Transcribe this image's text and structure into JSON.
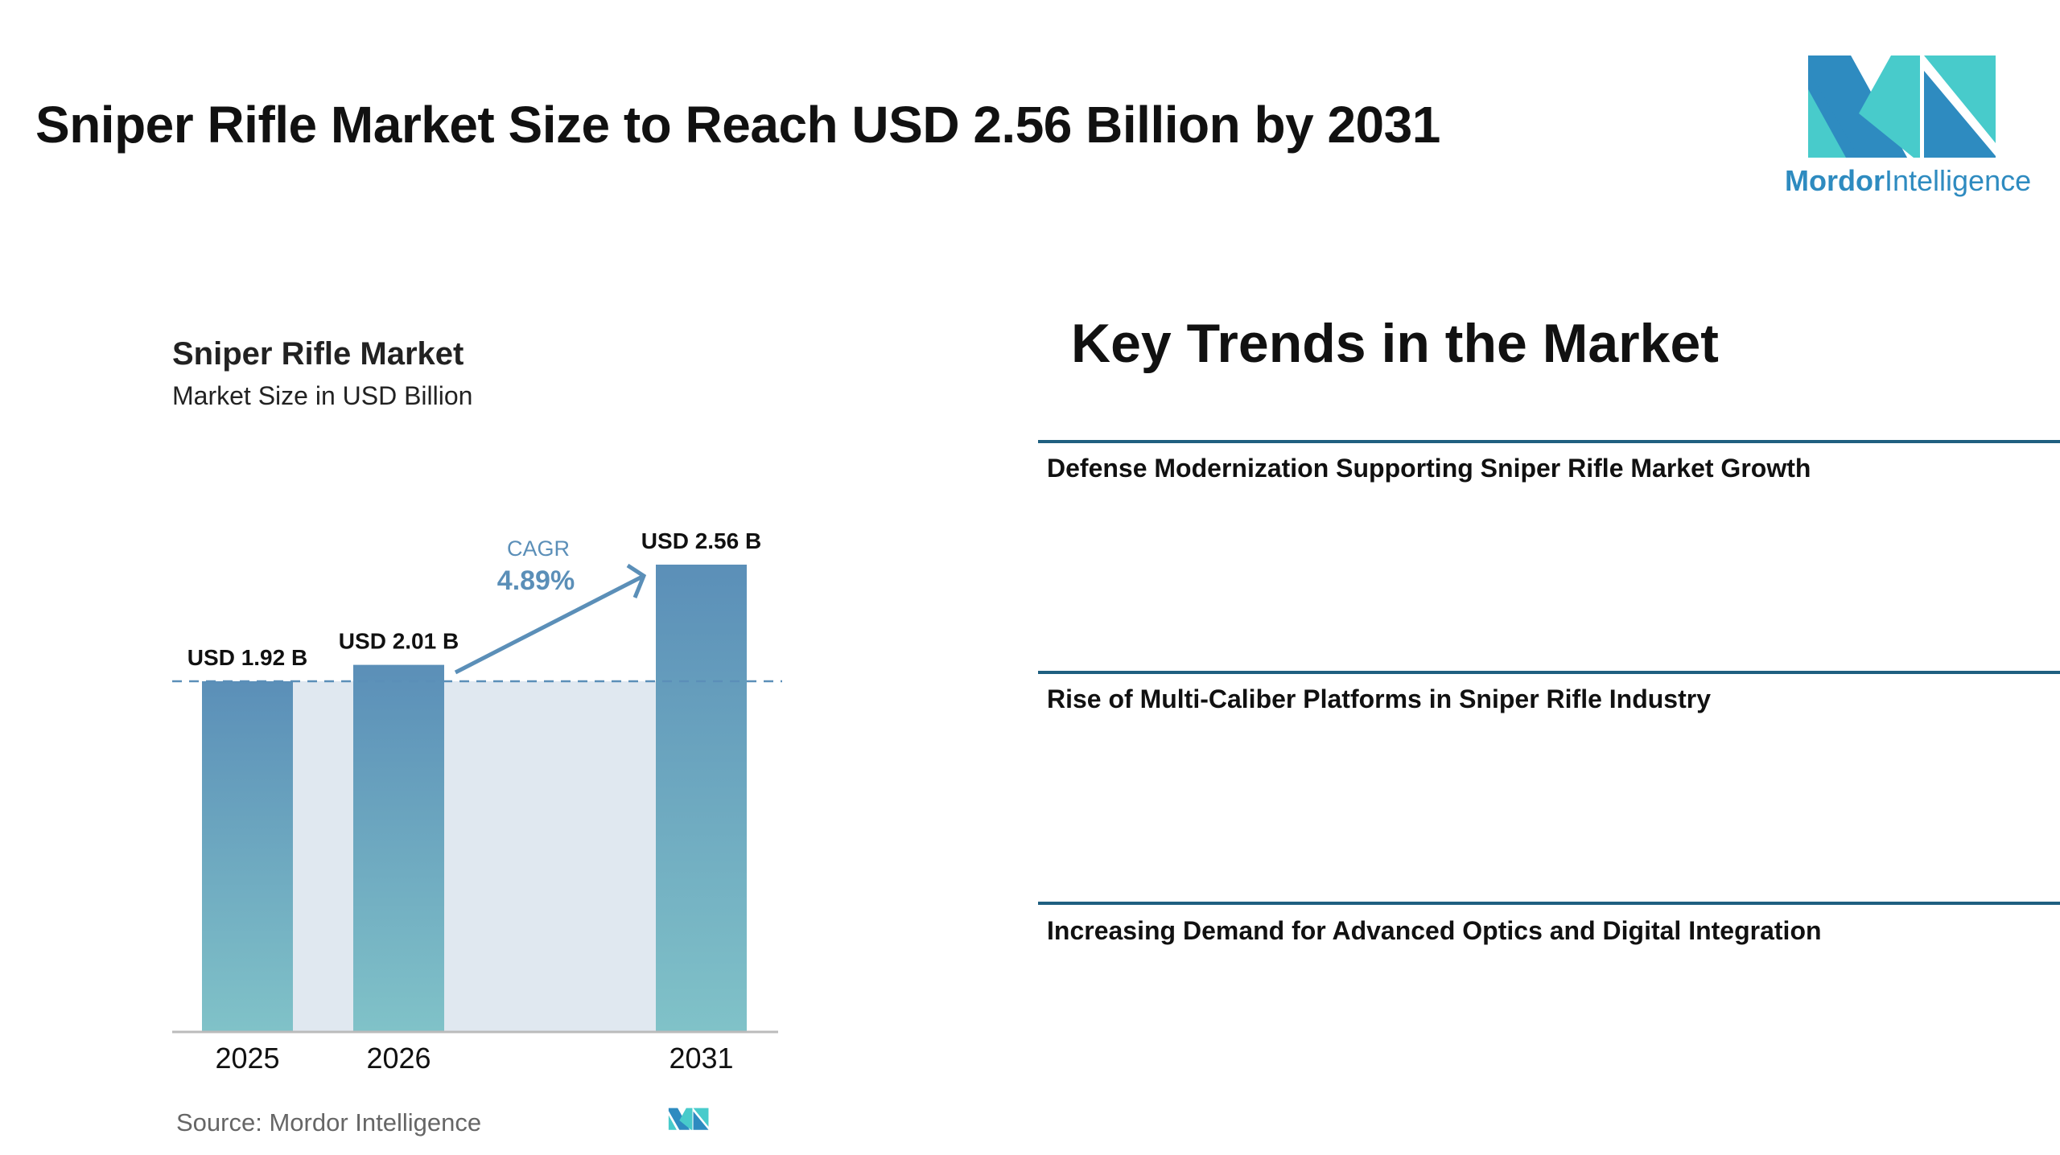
{
  "header": {
    "title": "Sniper Rifle Market Size to Reach USD 2.56 Billion by 2031",
    "logo_text_bold": "Mordor",
    "logo_text_light": "Intelligence"
  },
  "chart_data": {
    "type": "bar",
    "title": "Sniper Rifle Market",
    "subtitle": "Market Size in USD Billion",
    "categories": [
      "2025",
      "2026",
      "2031"
    ],
    "values": [
      1.92,
      2.01,
      2.56
    ],
    "data_labels": [
      "USD 1.92 B",
      "USD 2.01 B",
      "USD 2.56 B"
    ],
    "ylim": [
      0,
      2.56
    ],
    "grid": false,
    "cagr_label": "CAGR",
    "cagr_value": "4.89%",
    "source": "Source:  Mordor Intelligence",
    "colors": {
      "bar_top": "#5b8fb8",
      "bar_bottom": "#80c2c8",
      "fill": "#e0e8f0",
      "accent": "#5b8fb8"
    }
  },
  "trends": {
    "title": "Key Trends in the Market",
    "items": [
      "Defense Modernization Supporting Sniper Rifle Market Growth",
      "Rise of Multi-Caliber Platforms in Sniper Rifle Industry",
      "Increasing Demand for Advanced Optics and Digital Integration"
    ]
  }
}
